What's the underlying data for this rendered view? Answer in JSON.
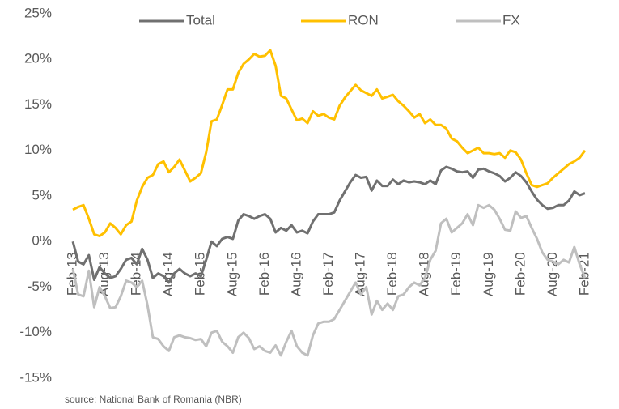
{
  "chart_data": {
    "type": "line",
    "categories": [
      "Feb-13",
      null,
      null,
      null,
      null,
      null,
      "Aug-13",
      null,
      null,
      null,
      null,
      null,
      "Feb-14",
      null,
      null,
      null,
      null,
      null,
      "Aug-14",
      null,
      null,
      null,
      null,
      null,
      "Feb-15",
      null,
      null,
      null,
      null,
      null,
      "Aug-15",
      null,
      null,
      null,
      null,
      null,
      "Feb-16",
      null,
      null,
      null,
      null,
      null,
      "Aug-16",
      null,
      null,
      null,
      null,
      null,
      "Feb-17",
      null,
      null,
      null,
      null,
      null,
      "Aug-17",
      null,
      null,
      null,
      null,
      null,
      "Feb-18",
      null,
      null,
      null,
      null,
      null,
      "Aug-18",
      null,
      null,
      null,
      null,
      null,
      "Feb-19",
      null,
      null,
      null,
      null,
      null,
      "Aug-19",
      null,
      null,
      null,
      null,
      null,
      "Feb-20",
      null,
      null,
      null,
      null,
      null,
      "Aug-20",
      null,
      null,
      null,
      null,
      null,
      "Feb-21"
    ],
    "series": [
      {
        "name": "Total",
        "color": "#707070",
        "values": [
          0,
          -2.2,
          -2.5,
          -1.5,
          -4.2,
          -2.8,
          -3.5,
          -4.0,
          -3.8,
          -3.0,
          -2.0,
          -1.8,
          -2.5,
          -0.8,
          -2.0,
          -4.0,
          -3.5,
          -3.8,
          -4.5,
          -3.5,
          -3.0,
          -3.5,
          -3.8,
          -3.5,
          -3.8,
          -2.0,
          0,
          -0.5,
          0.3,
          0.5,
          0.3,
          2.3,
          3.0,
          2.8,
          2.5,
          2.8,
          3.0,
          2.5,
          1.0,
          1.5,
          1.2,
          1.8,
          1.0,
          1.2,
          0.9,
          2.2,
          3.0,
          3.0,
          3.0,
          3.2,
          4.5,
          5.5,
          6.5,
          7.3,
          7.0,
          7.1,
          5.6,
          6.7,
          6.1,
          6.1,
          6.8,
          6.3,
          6.7,
          6.5,
          6.6,
          6.5,
          6.3,
          6.7,
          6.3,
          7.8,
          8.2,
          8.0,
          7.7,
          7.6,
          7.7,
          7.0,
          7.9,
          8.0,
          7.7,
          7.5,
          7.2,
          6.6,
          7.0,
          7.6,
          7.2,
          6.5,
          5.5,
          4.6,
          4.0,
          3.6,
          3.7,
          4.0,
          4.0,
          4.5,
          5.5,
          5.1,
          5.3
        ]
      },
      {
        "name": "RON",
        "color": "#ffc000",
        "values": [
          3.5,
          3.8,
          4.0,
          2.5,
          0.8,
          0.6,
          1.0,
          2.0,
          1.5,
          0.8,
          1.8,
          2.2,
          4.5,
          6.0,
          7.0,
          7.3,
          8.5,
          8.8,
          7.6,
          8.2,
          9.0,
          7.8,
          6.6,
          7.0,
          7.5,
          9.8,
          13.2,
          13.4,
          15.0,
          16.7,
          16.7,
          18.5,
          19.5,
          20.0,
          20.6,
          20.3,
          20.4,
          21.0,
          19.3,
          16.0,
          15.7,
          14.5,
          13.3,
          13.5,
          13.0,
          14.3,
          13.8,
          14.0,
          13.6,
          13.4,
          14.9,
          15.8,
          16.5,
          17.2,
          16.6,
          16.3,
          16.0,
          16.7,
          15.7,
          15.9,
          16.1,
          15.4,
          14.9,
          14.3,
          13.6,
          14.0,
          13.0,
          13.4,
          12.8,
          12.8,
          12.4,
          11.3,
          11.0,
          10.3,
          9.7,
          10.0,
          10.3,
          9.7,
          9.7,
          9.6,
          9.7,
          9.2,
          10.0,
          9.8,
          9.0,
          7.5,
          6.2,
          6.0,
          6.2,
          6.4,
          7.0,
          7.5,
          8.0,
          8.5,
          8.8,
          9.2,
          10.0
        ]
      },
      {
        "name": "FX",
        "color": "#bfbfbf",
        "values": [
          -3,
          -5.8,
          -6.0,
          -3.2,
          -7.2,
          -5.0,
          -6.0,
          -7.3,
          -7.2,
          -6.0,
          -4.3,
          -4.5,
          -5.0,
          -4.3,
          -7.0,
          -10.5,
          -10.7,
          -11.5,
          -12.0,
          -10.5,
          -10.3,
          -10.5,
          -10.6,
          -10.8,
          -10.7,
          -11.5,
          -10.0,
          -9.8,
          -11.0,
          -11.5,
          -12.2,
          -10.5,
          -10.0,
          -10.6,
          -11.8,
          -11.5,
          -12.0,
          -12.2,
          -11.4,
          -12.5,
          -11.0,
          -9.8,
          -11.5,
          -12.2,
          -12.5,
          -10.3,
          -9.0,
          -8.8,
          -8.8,
          -8.5,
          -7.5,
          -6.5,
          -5.5,
          -4.5,
          -5.8,
          -5.0,
          -8.0,
          -6.5,
          -7.5,
          -6.8,
          -7.5,
          -6.0,
          -5.8,
          -5.0,
          -4.5,
          -4.8,
          -4.0,
          -2.0,
          -1.0,
          2.0,
          2.5,
          1.0,
          1.5,
          2.0,
          3.0,
          1.8,
          4.0,
          3.7,
          4.0,
          3.5,
          2.5,
          1.3,
          1.2,
          3.3,
          2.6,
          2.8,
          1.5,
          0.3,
          -1.2,
          -2.0,
          -2.2,
          -2.5,
          -2.0,
          -2.3,
          -0.6,
          -2.5,
          -4.0
        ]
      }
    ],
    "ylim": [
      -15,
      25
    ],
    "yticks": [
      {
        "value": -15,
        "label": "-15%"
      },
      {
        "value": -10,
        "label": "-10%"
      },
      {
        "value": -5,
        "label": "-5%"
      },
      {
        "value": 0,
        "label": "0%"
      },
      {
        "value": 5,
        "label": "5%"
      },
      {
        "value": 10,
        "label": "10%"
      },
      {
        "value": 15,
        "label": "15%"
      },
      {
        "value": 20,
        "label": "20%"
      },
      {
        "value": 25,
        "label": "25%"
      }
    ],
    "grid": false,
    "legend": "top",
    "source": "source: National Bank of Romania (NBR)"
  }
}
